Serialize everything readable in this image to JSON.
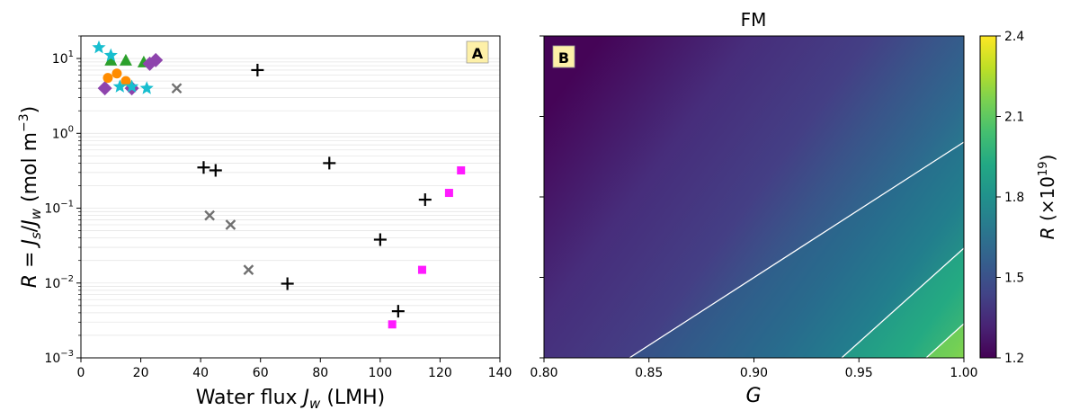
{
  "chart_data": [
    {
      "panel": "A",
      "type": "scatter",
      "panel_label": "A",
      "xlabel": "Water flux J_w (LMH)",
      "xlabel_parts": {
        "pre": "Water flux ",
        "sym": "J",
        "sub": "w",
        "post": " (LMH)"
      },
      "ylabel": "R = J_s/J_w (mol m^-3)",
      "ylabel_parts": {
        "r": "R",
        "eq": " = ",
        "j1": "J",
        "s1": "s",
        "slash": "/",
        "j2": "J",
        "s2": "w",
        "units": " (mol m",
        "exp": "−3",
        "close": ")"
      },
      "xlim": [
        0,
        140
      ],
      "ylim": [
        0.001,
        20
      ],
      "yscale": "log",
      "xticks": [
        0,
        20,
        40,
        60,
        80,
        100,
        120,
        140
      ],
      "xtick_labels": [
        "0",
        "20",
        "40",
        "60",
        "80",
        "100",
        "120",
        "140"
      ],
      "yticks": [
        {
          "value": 10,
          "base": "10",
          "exp": "1"
        },
        {
          "value": 1,
          "base": "10",
          "exp": "0"
        },
        {
          "value": 0.1,
          "base": "10",
          "exp": "−1"
        },
        {
          "value": 0.01,
          "base": "10",
          "exp": "−2"
        },
        {
          "value": 0.001,
          "base": "10",
          "exp": "−3"
        }
      ],
      "grid": "minor horizontal",
      "series": [
        {
          "marker": "plus",
          "color": "#000000",
          "points": [
            [
              41,
              0.35
            ],
            [
              45,
              0.32
            ],
            [
              59,
              7
            ],
            [
              69,
              0.0098
            ],
            [
              83,
              0.4
            ],
            [
              100,
              0.038
            ],
            [
              106,
              0.0042
            ],
            [
              115,
              0.13
            ]
          ]
        },
        {
          "marker": "x",
          "color": "#707070",
          "points": [
            [
              32,
              4
            ],
            [
              43,
              0.08
            ],
            [
              50,
              0.06
            ],
            [
              56,
              0.015
            ]
          ]
        },
        {
          "marker": "square",
          "color": "#ff1aff",
          "points": [
            [
              104,
              0.0028
            ],
            [
              114,
              0.015
            ],
            [
              123,
              0.16
            ],
            [
              127,
              0.32
            ]
          ]
        },
        {
          "marker": "triangle",
          "color": "#2ca02c",
          "points": [
            [
              10,
              9.5
            ],
            [
              15,
              9.5
            ],
            [
              21,
              9
            ]
          ]
        },
        {
          "marker": "diamond",
          "color": "#8e44ad",
          "points": [
            [
              8,
              4
            ],
            [
              17,
              4
            ],
            [
              23,
              8.5
            ],
            [
              25,
              9.5
            ]
          ]
        },
        {
          "marker": "circle",
          "color": "#ff8c00",
          "points": [
            [
              9,
              5.5
            ],
            [
              12,
              6.3
            ],
            [
              15,
              5
            ]
          ]
        },
        {
          "marker": "star",
          "color": "#17becf",
          "points": [
            [
              6,
              14
            ],
            [
              10,
              11
            ],
            [
              13,
              4.2
            ],
            [
              17,
              4.2
            ],
            [
              22,
              4
            ]
          ]
        }
      ]
    },
    {
      "panel": "B",
      "type": "heatmap",
      "title": "FM",
      "panel_label": "B",
      "xlabel": "G",
      "xlim": [
        0.8,
        1.0
      ],
      "xticks": [
        0.8,
        0.85,
        0.9,
        0.95,
        1.0
      ],
      "xtick_labels": [
        "0.80",
        "0.85",
        "0.90",
        "0.95",
        "1.00"
      ],
      "colorbar": {
        "label_parts": {
          "sym": "R",
          "pre": " (×10",
          "exp": "19",
          "post": ")"
        },
        "range": [
          1.2,
          2.4
        ],
        "ticks": [
          1.2,
          1.5,
          1.8,
          2.1,
          2.4
        ],
        "tick_labels": [
          "1.2",
          "1.5",
          "1.8",
          "2.1",
          "2.4"
        ],
        "colormap": "viridis"
      },
      "contour_levels": [
        1.5,
        1.8,
        2.1
      ]
    }
  ]
}
